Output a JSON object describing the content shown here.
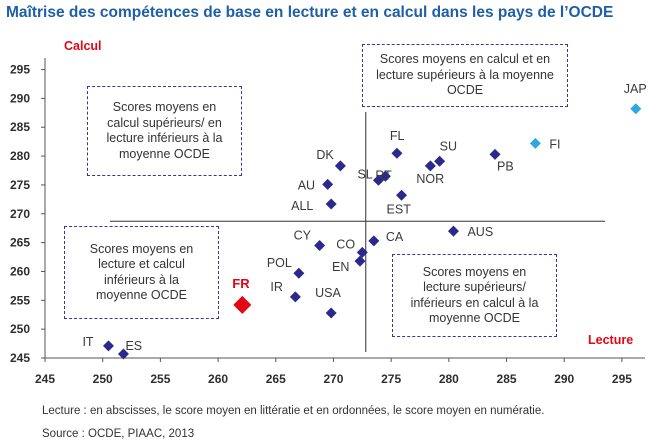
{
  "title": "Maîtrise des compétences de base en lecture et en calcul dans les pays de l’OCDE",
  "footnote": "Lecture : en abscisses, le score moyen en littératie et en ordonnées, le score moyen en numératie.",
  "source": "Source : OCDE, PIAAC, 2013",
  "quadrant_notes": {
    "top_left": "Scores moyens en calcul supérieurs/ en lecture inférieurs à la moyenne OCDE",
    "top_right": "Scores moyens en calcul et en lecture supérieurs à la moyenne OCDE",
    "bottom_left": "Scores moyens en lecture et calcul inférieurs à la moyenne OCDE",
    "bottom_right": "Scores moyens en lecture supérieurs/ inférieurs en calcul à la moyenne OCDE"
  },
  "colors": {
    "default": "#2b2a8c",
    "finland_japan": "#2ea8e0",
    "france": "#e30613",
    "title": "#1f5fa8"
  },
  "chart_data": {
    "type": "scatter",
    "xlabel": "Lecture",
    "ylabel": "Calcul",
    "xlim": [
      245,
      297
    ],
    "ylim": [
      245,
      297
    ],
    "xticks": [
      245,
      250,
      255,
      260,
      265,
      270,
      275,
      280,
      285,
      290,
      295
    ],
    "yticks": [
      245,
      250,
      255,
      260,
      265,
      270,
      275,
      280,
      285,
      290,
      295
    ],
    "reference_lines": {
      "x": 272.8,
      "y": 268.7
    },
    "grid": false,
    "points": [
      {
        "label": "JAP",
        "x": 296.2,
        "y": 288.2,
        "color": "finland_japan"
      },
      {
        "label": "FI",
        "x": 287.5,
        "y": 282.2,
        "color": "finland_japan"
      },
      {
        "label": "PB",
        "x": 284.0,
        "y": 280.3,
        "color": "default"
      },
      {
        "label": "SU",
        "x": 279.2,
        "y": 279.1,
        "color": "default"
      },
      {
        "label": "NOR",
        "x": 278.4,
        "y": 278.3,
        "color": "default"
      },
      {
        "label": "FL",
        "x": 275.5,
        "y": 280.5,
        "color": "default"
      },
      {
        "label": "SL",
        "x": 273.9,
        "y": 275.8,
        "color": "default"
      },
      {
        "label": "RT",
        "x": 274.5,
        "y": 276.5,
        "color": "default"
      },
      {
        "label": "EST",
        "x": 275.9,
        "y": 273.2,
        "color": "default"
      },
      {
        "label": "DK",
        "x": 270.6,
        "y": 278.3,
        "color": "default"
      },
      {
        "label": "AU",
        "x": 269.5,
        "y": 275.1,
        "color": "default"
      },
      {
        "label": "ALL",
        "x": 269.8,
        "y": 271.7,
        "color": "default"
      },
      {
        "label": "AUS",
        "x": 280.4,
        "y": 267.0,
        "color": "default"
      },
      {
        "label": "CY",
        "x": 268.8,
        "y": 264.5,
        "color": "default"
      },
      {
        "label": "CA",
        "x": 273.5,
        "y": 265.3,
        "color": "default"
      },
      {
        "label": "CO",
        "x": 272.5,
        "y": 263.3,
        "color": "default"
      },
      {
        "label": "EN",
        "x": 272.3,
        "y": 261.8,
        "color": "default"
      },
      {
        "label": "POL",
        "x": 267.0,
        "y": 259.7,
        "color": "default"
      },
      {
        "label": "IR",
        "x": 266.7,
        "y": 255.6,
        "color": "default"
      },
      {
        "label": "USA",
        "x": 269.8,
        "y": 252.8,
        "color": "default"
      },
      {
        "label": "FR",
        "x": 262.1,
        "y": 254.2,
        "color": "france",
        "highlight": true
      },
      {
        "label": "IT",
        "x": 250.5,
        "y": 247.1,
        "color": "default"
      },
      {
        "label": "ES",
        "x": 251.8,
        "y": 245.7,
        "color": "default"
      }
    ]
  }
}
